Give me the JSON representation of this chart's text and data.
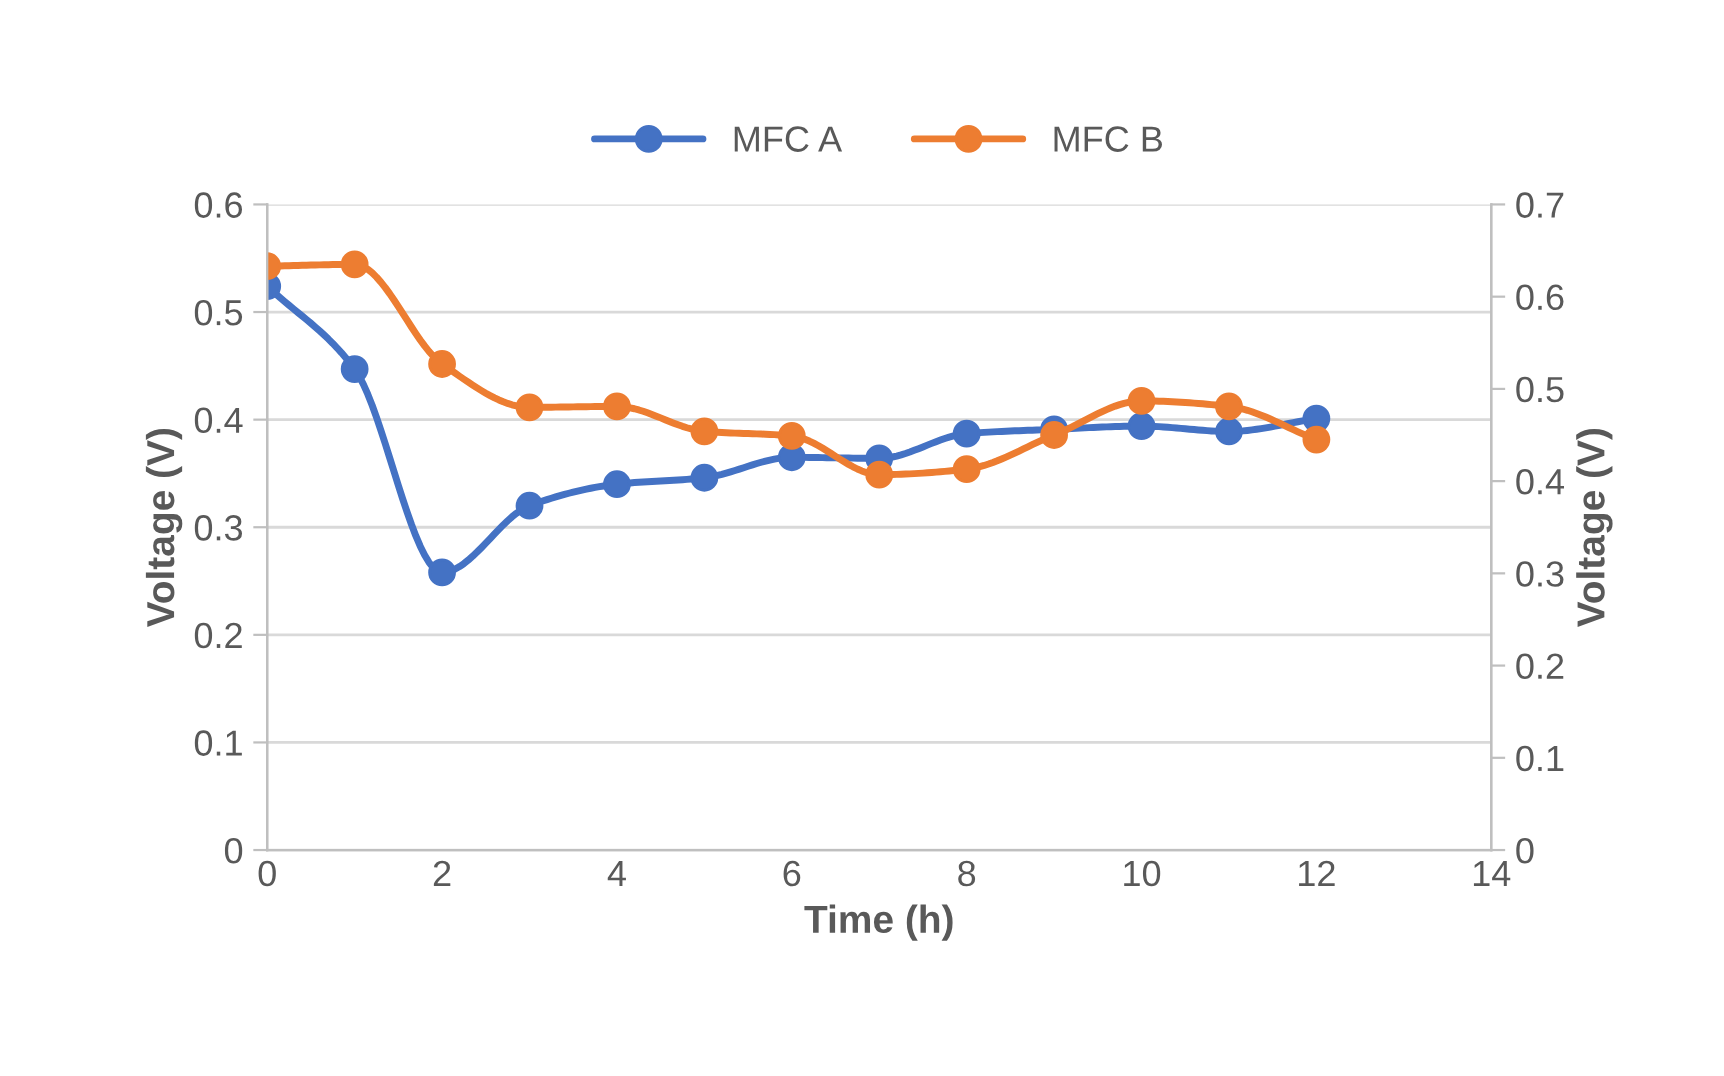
{
  "chart_data": {
    "type": "line",
    "xlabel": "Time (h)",
    "ylabel": "Voltage (V)",
    "y2label": "Voltage (V)",
    "x": [
      0,
      1,
      2,
      3,
      4,
      5,
      6,
      7,
      8,
      9,
      10,
      11,
      12
    ],
    "series": [
      {
        "name": "MFC A",
        "color": "#4472c4",
        "values": [
          0.524,
          0.447,
          0.258,
          0.32,
          0.34,
          0.346,
          0.365,
          0.364,
          0.387,
          0.391,
          0.394,
          0.389,
          0.401
        ]
      },
      {
        "name": "MFC B",
        "color": "#ed7d31",
        "axis": "y2",
        "values": [
          0.633,
          0.635,
          0.527,
          0.48,
          0.481,
          0.454,
          0.449,
          0.407,
          0.413,
          0.45,
          0.487,
          0.481,
          0.445
        ]
      }
    ],
    "xlim": [
      0,
      14
    ],
    "xticks": [
      0,
      2,
      4,
      6,
      8,
      10,
      12,
      14
    ],
    "ylim": [
      0,
      0.6
    ],
    "yticks": [
      0,
      0.1,
      0.2,
      0.3,
      0.4,
      0.5,
      0.6
    ],
    "y2lim": [
      0,
      0.7
    ],
    "y2ticks": [
      0,
      0.1,
      0.2,
      0.3,
      0.4,
      0.5,
      0.6,
      0.7
    ],
    "grid": "y",
    "legend": "top",
    "marker": "circle",
    "line_style": "solid"
  }
}
